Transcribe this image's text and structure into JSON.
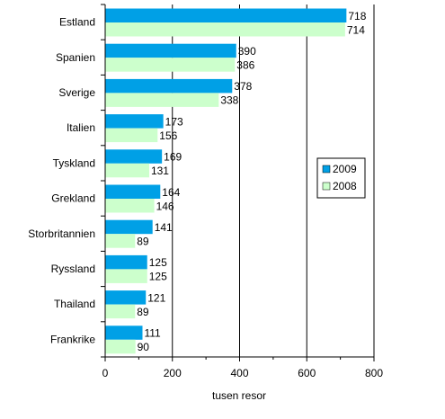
{
  "chart_data": {
    "type": "bar",
    "orientation": "horizontal",
    "categories": [
      "Estland",
      "Spanien",
      "Sverige",
      "Italien",
      "Tyskland",
      "Grekland",
      "Storbritannien",
      "Ryssland",
      "Thailand",
      "Frankrike"
    ],
    "series": [
      {
        "name": "2009",
        "values": [
          718,
          390,
          378,
          173,
          169,
          164,
          141,
          125,
          121,
          111
        ],
        "color": "#00a0e6"
      },
      {
        "name": "2008",
        "values": [
          714,
          386,
          338,
          156,
          131,
          146,
          89,
          125,
          89,
          90
        ],
        "color": "#ccffcc"
      }
    ],
    "data_labels": {
      "2009": [
        "718",
        "390",
        "378",
        "173",
        "169",
        "164",
        "141",
        "125",
        "121",
        "111"
      ],
      "2008": [
        "714",
        "386",
        "338",
        "156",
        "131",
        "146",
        "89",
        "125",
        "89",
        "90"
      ]
    },
    "xlabel": "tusen resor",
    "xlim": [
      0,
      800
    ],
    "xticks": [
      "0",
      "200",
      "400",
      "600",
      "800"
    ],
    "grid": "vertical major lines",
    "legend_position": "right"
  }
}
